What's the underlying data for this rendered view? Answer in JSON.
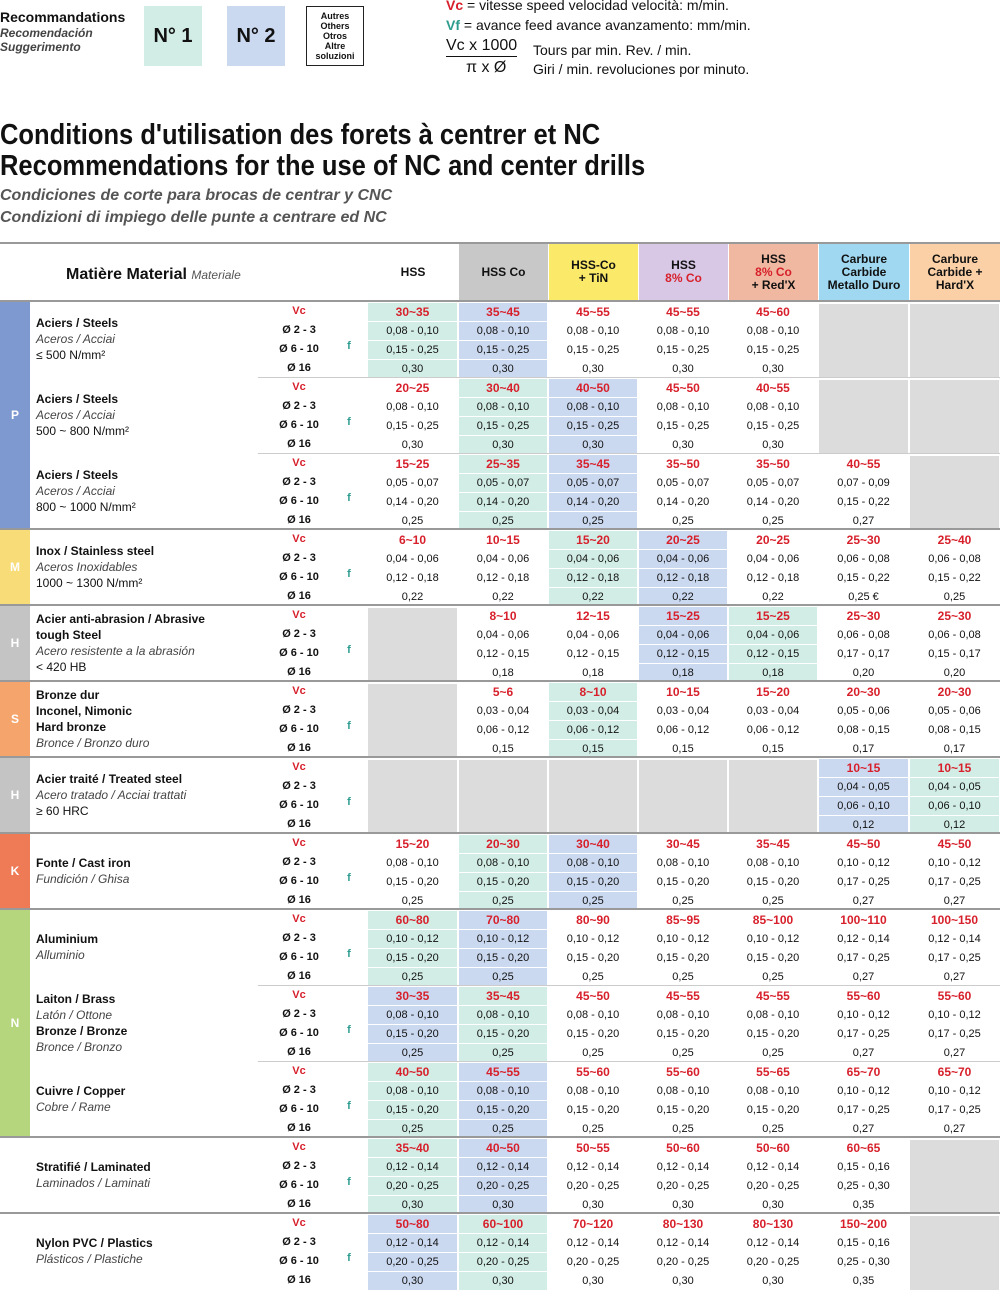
{
  "legend": {
    "recommend_title": "Recommandations",
    "recommend_es": "Recomendación",
    "recommend_it": "Suggerimento",
    "box1": "N° 1",
    "box2": "N° 2",
    "box3": [
      "Autres",
      "Others",
      "Otros",
      "Altre",
      "soluzioni"
    ],
    "vc_key": "Vc",
    "vc_text": "= vitesse     speed     velocidad     velocità: m/min.",
    "vf_key": "Vf",
    "vf_text": "= avance   feed   avance  avanzamento: mm/min.",
    "formula_num": "Vc x 1000",
    "formula_den": "π x Ø",
    "formula_line1": "Tours par min.     Rev. / min.",
    "formula_line2": "Giri / min.     revoluciones por minuto."
  },
  "titles": {
    "fr": "Conditions d'utilisation des forets à centrer et NC",
    "en": "Recommendations for the use of NC and center drills",
    "es": "Condiciones de corte para brocas de centrar y CNC",
    "it": "Condizioni di impiego delle punte a centrare ed NC"
  },
  "header": {
    "material_label": "Matière Material",
    "material_it": "Materiale",
    "columns": [
      {
        "lines": [
          "HSS"
        ],
        "bg": "#ffffff",
        "color": "#111111"
      },
      {
        "lines": [
          "HSS  Co"
        ],
        "bg": "#c8c8c8",
        "color": "#111111"
      },
      {
        "lines": [
          "HSS-Co",
          "+ TiN"
        ],
        "bg": "#fbe96a",
        "color": "#111111"
      },
      {
        "lines": [
          "HSS",
          "8% Co"
        ],
        "bg": "#d8c8e6",
        "color": "#111111",
        "red_part": "8%"
      },
      {
        "lines": [
          "HSS",
          "8% Co",
          "+ Red'X"
        ],
        "bg": "#f0b8a0",
        "color": "#111111",
        "red_part": "8%"
      },
      {
        "lines": [
          "Carbure",
          "Carbide",
          "Metallo Duro"
        ],
        "bg": "#9fd8f0",
        "color": "#111111"
      },
      {
        "lines": [
          "Carbure",
          "Carbide +",
          "Hard'X"
        ],
        "bg": "#fbd0a6",
        "color": "#111111"
      }
    ]
  },
  "row_labels": {
    "vc": "Vc",
    "d1": "Ø 2 - 3",
    "d2": "Ø 6 - 10",
    "d3": "Ø 16",
    "f": "f"
  },
  "groups": [
    {
      "cat": "P",
      "color": "#7e99cf",
      "blocks": [
        {
          "lines": [
            [
              "Aciers / Steels",
              "b"
            ],
            [
              "Aceros / Acciai",
              "i"
            ],
            [
              "≤ 500 N/mm²",
              "n"
            ]
          ],
          "vc": [
            "30~35",
            "35~45",
            "45~55",
            "45~55",
            "45~60",
            null,
            null
          ],
          "d1": [
            "0,08 - 0,10",
            "0,08 - 0,10",
            "0,08 - 0,10",
            "0,08 - 0,10",
            "0,08 - 0,10",
            null,
            null
          ],
          "d2": [
            "0,15 - 0,25",
            "0,15 - 0,25",
            "0,15 - 0,25",
            "0,15 - 0,25",
            "0,15 - 0,25",
            null,
            null
          ],
          "d3": [
            "0,30",
            "0,30",
            "0,30",
            "0,30",
            "0,30",
            null,
            null
          ],
          "hl": [
            1,
            2,
            0,
            0,
            0,
            0,
            0
          ]
        },
        {
          "lines": [
            [
              "Aciers / Steels",
              "b"
            ],
            [
              "Aceros / Acciai",
              "i"
            ],
            [
              "500 ~ 800 N/mm²",
              "n"
            ]
          ],
          "vc": [
            "20~25",
            "30~40",
            "40~50",
            "45~50",
            "40~55",
            null,
            null
          ],
          "d1": [
            "0,08 - 0,10",
            "0,08 - 0,10",
            "0,08 - 0,10",
            "0,08 - 0,10",
            "0,08 - 0,10",
            null,
            null
          ],
          "d2": [
            "0,15 - 0,25",
            "0,15 - 0,25",
            "0,15 - 0,25",
            "0,15 - 0,25",
            "0,15 - 0,25",
            null,
            null
          ],
          "d3": [
            "0,30",
            "0,30",
            "0,30",
            "0,30",
            "0,30",
            null,
            null
          ],
          "hl": [
            0,
            1,
            2,
            0,
            0,
            0,
            0
          ]
        },
        {
          "lines": [
            [
              "Aciers / Steels",
              "b"
            ],
            [
              "Aceros / Acciai",
              "i"
            ],
            [
              "800 ~ 1000 N/mm²",
              "n"
            ]
          ],
          "vc": [
            "15~25",
            "25~35",
            "35~45",
            "35~50",
            "35~50",
            "40~55",
            null
          ],
          "d1": [
            "0,05 - 0,07",
            "0,05 - 0,07",
            "0,05 - 0,07",
            "0,05 - 0,07",
            "0,05 - 0,07",
            "0,07 - 0,09",
            null
          ],
          "d2": [
            "0,14 - 0,20",
            "0,14 - 0,20",
            "0,14 - 0,20",
            "0,14 - 0,20",
            "0,14 - 0,20",
            "0,15 - 0,22",
            null
          ],
          "d3": [
            "0,25",
            "0,25",
            "0,25",
            "0,25",
            "0,25",
            "0,27",
            null
          ],
          "hl": [
            0,
            1,
            2,
            0,
            0,
            0,
            0
          ]
        }
      ]
    },
    {
      "cat": "M",
      "color": "#f8dc78",
      "blocks": [
        {
          "lines": [
            [
              "Inox / Stainless steel",
              "b"
            ],
            [
              "Aceros Inoxidables",
              "i"
            ],
            [
              "1000 ~ 1300 N/mm²",
              "n"
            ]
          ],
          "vc": [
            "6~10",
            "10~15",
            "15~20",
            "20~25",
            "20~25",
            "25~30",
            "25~40"
          ],
          "d1": [
            "0,04 - 0,06",
            "0,04 - 0,06",
            "0,04 - 0,06",
            "0,04 - 0,06",
            "0,04 - 0,06",
            "0,06 - 0,08",
            "0,06 - 0,08"
          ],
          "d2": [
            "0,12 - 0,18",
            "0,12 - 0,18",
            "0,12 - 0,18",
            "0,12 - 0,18",
            "0,12 - 0,18",
            "0,15 - 0,22",
            "0,15 - 0,22"
          ],
          "d3": [
            "0,22",
            "0,22",
            "0,22",
            "0,22",
            "0,22",
            "0,25 €",
            "0,25"
          ],
          "hl": [
            0,
            0,
            1,
            2,
            0,
            0,
            0
          ]
        }
      ]
    },
    {
      "cat": "H",
      "color": "#c4c4c4",
      "blocks": [
        {
          "lines": [
            [
              "Acier anti-abrasion /        Abrasive",
              "b"
            ],
            [
              "tough Steel",
              "b"
            ],
            [
              "Acero resistente a la abrasión",
              "i"
            ],
            [
              "< 420 HB",
              "n"
            ]
          ],
          "vc": [
            null,
            "8~10",
            "12~15",
            "15~25",
            "15~25",
            "25~30",
            "25~30"
          ],
          "d1": [
            null,
            "0,04 - 0,06",
            "0,04 - 0,06",
            "0,04 - 0,06",
            "0,04 - 0,06",
            "0,06 - 0,08",
            "0,06 - 0,08"
          ],
          "d2": [
            null,
            "0,12 - 0,15",
            "0,12 - 0,15",
            "0,12 - 0,15",
            "0,12 - 0,15",
            "0,17 - 0,17",
            "0,15 - 0,17"
          ],
          "d3": [
            null,
            "0,18",
            "0,18",
            "0,18",
            "0,18",
            "0,20",
            "0,20"
          ],
          "hl": [
            0,
            0,
            0,
            2,
            1,
            0,
            0
          ]
        }
      ]
    },
    {
      "cat": "S",
      "color": "#f5a46c",
      "blocks": [
        {
          "lines": [
            [
              "Bronze dur",
              "b"
            ],
            [
              "Inconel, Nimonic",
              "b"
            ],
            [
              "Hard bronze",
              "b"
            ],
            [
              "Bronce / Bronzo duro",
              "i"
            ]
          ],
          "vc": [
            null,
            "5~6",
            "8~10",
            "10~15",
            "15~20",
            "20~30",
            "20~30"
          ],
          "d1": [
            null,
            "0,03 - 0,04",
            "0,03 - 0,04",
            "0,03 - 0,04",
            "0,03 - 0,04",
            "0,05 - 0,06",
            "0,05 - 0,06"
          ],
          "d2": [
            null,
            "0,06 - 0,12",
            "0,06 - 0,12",
            "0,06 - 0,12",
            "0,06 - 0,12",
            "0,08 - 0,15",
            "0,08 - 0,15"
          ],
          "d3": [
            null,
            "0,15",
            "0,15",
            "0,15",
            "0,15",
            "0,17",
            "0,17"
          ],
          "hl": [
            0,
            0,
            1,
            0,
            0,
            0,
            0
          ]
        }
      ]
    },
    {
      "cat": "H",
      "color": "#c4c4c4",
      "blocks": [
        {
          "lines": [
            [
              "Acier traité / Treated steel",
              "b"
            ],
            [
              "Acero tratado / Acciai trattati",
              "i"
            ],
            [
              "≥ 60 HRC",
              "n"
            ]
          ],
          "vc": [
            null,
            null,
            null,
            null,
            null,
            "10~15",
            "10~15"
          ],
          "d1": [
            null,
            null,
            null,
            null,
            null,
            "0,04 - 0,05",
            "0,04 - 0,05"
          ],
          "d2": [
            null,
            null,
            null,
            null,
            null,
            "0,06 - 0,10",
            "0,06 - 0,10"
          ],
          "d3": [
            null,
            null,
            null,
            null,
            null,
            "0,12",
            "0,12"
          ],
          "hl": [
            0,
            0,
            0,
            0,
            0,
            2,
            1
          ]
        }
      ]
    },
    {
      "cat": "K",
      "color": "#ef7a56",
      "blocks": [
        {
          "lines": [
            [
              "Fonte / Cast iron",
              "b"
            ],
            [
              "Fundición / Ghisa",
              "i"
            ]
          ],
          "vc": [
            "15~20",
            "20~30",
            "30~40",
            "30~45",
            "35~45",
            "45~50",
            "45~50"
          ],
          "d1": [
            "0,08 - 0,10",
            "0,08 - 0,10",
            "0,08 - 0,10",
            "0,08 - 0,10",
            "0,08 - 0,10",
            "0,10 - 0,12",
            "0,10 - 0,12"
          ],
          "d2": [
            "0,15 - 0,20",
            "0,15 - 0,20",
            "0,15 - 0,20",
            "0,15 - 0,20",
            "0,15 - 0,20",
            "0,17 - 0,25",
            "0,17 - 0,25"
          ],
          "d3": [
            "0,25",
            "0,25",
            "0,25",
            "0,25",
            "0,25",
            "0,27",
            "0,27"
          ],
          "hl": [
            0,
            1,
            2,
            0,
            0,
            0,
            0
          ]
        }
      ]
    },
    {
      "cat": "N",
      "color": "#b5d67c",
      "blocks": [
        {
          "lines": [
            [
              "Aluminium",
              "b"
            ],
            [
              "Alluminio",
              "i"
            ]
          ],
          "vc": [
            "60~80",
            "70~80",
            "80~90",
            "85~95",
            "85~100",
            "100~110",
            "100~150"
          ],
          "d1": [
            "0,10 - 0,12",
            "0,10 - 0,12",
            "0,10 - 0,12",
            "0,10 - 0,12",
            "0,10 - 0,12",
            "0,12 - 0,14",
            "0,12 - 0,14"
          ],
          "d2": [
            "0,15 - 0,20",
            "0,15 - 0,20",
            "0,15 - 0,20",
            "0,15 - 0,20",
            "0,15 - 0,20",
            "0,17 - 0,25",
            "0,17 - 0,25"
          ],
          "d3": [
            "0,25",
            "0,25",
            "0,25",
            "0,25",
            "0,25",
            "0,27",
            "0,27"
          ],
          "hl": [
            1,
            2,
            0,
            0,
            0,
            0,
            0
          ]
        },
        {
          "lines": [
            [
              "Laiton / Brass",
              "b"
            ],
            [
              "Latón / Ottone",
              "i"
            ],
            [
              "Bronze / Bronze",
              "b"
            ],
            [
              "Bronce / Bronzo",
              "i"
            ]
          ],
          "vc": [
            "30~35",
            "35~45",
            "45~50",
            "45~55",
            "45~55",
            "55~60",
            "55~60"
          ],
          "d1": [
            "0,08 - 0,10",
            "0,08 - 0,10",
            "0,08 - 0,10",
            "0,08 - 0,10",
            "0,08 - 0,10",
            "0,10 - 0,12",
            "0,10 - 0,12"
          ],
          "d2": [
            "0,15 - 0,20",
            "0,15 - 0,20",
            "0,15 - 0,20",
            "0,15 - 0,20",
            "0,15 - 0,20",
            "0,17 - 0,25",
            "0,17 - 0,25"
          ],
          "d3": [
            "0,25",
            "0,25",
            "0,25",
            "0,25",
            "0,25",
            "0,27",
            "0,27"
          ],
          "hl": [
            2,
            1,
            0,
            0,
            0,
            0,
            0
          ]
        },
        {
          "lines": [
            [
              "Cuivre / Copper",
              "b"
            ],
            [
              "Cobre / Rame",
              "i"
            ]
          ],
          "vc": [
            "40~50",
            "45~55",
            "55~60",
            "55~60",
            "55~65",
            "65~70",
            "65~70"
          ],
          "d1": [
            "0,08 - 0,10",
            "0,08 - 0,10",
            "0,08 - 0,10",
            "0,08 - 0,10",
            "0,08 - 0,10",
            "0,10 - 0,12",
            "0,10 - 0,12"
          ],
          "d2": [
            "0,15 - 0,20",
            "0,15 - 0,20",
            "0,15 - 0,20",
            "0,15 - 0,20",
            "0,15 - 0,20",
            "0,17 - 0,25",
            "0,17 - 0,25"
          ],
          "d3": [
            "0,25",
            "0,25",
            "0,25",
            "0,25",
            "0,25",
            "0,27",
            "0,27"
          ],
          "hl": [
            1,
            2,
            0,
            0,
            0,
            0,
            0
          ]
        }
      ]
    },
    {
      "cat": "",
      "color": "#ffffff",
      "blocks": [
        {
          "lines": [
            [
              "Stratifié / Laminated",
              "b"
            ],
            [
              "Laminados / Laminati",
              "i"
            ]
          ],
          "vc": [
            "35~40",
            "40~50",
            "50~55",
            "50~60",
            "50~60",
            "60~65",
            null
          ],
          "d1": [
            "0,12 - 0,14",
            "0,12 - 0,14",
            "0,12 - 0,14",
            "0,12 - 0,14",
            "0,12 - 0,14",
            "0,15 - 0,16",
            null
          ],
          "d2": [
            "0,20 - 0,25",
            "0,20 - 0,25",
            "0,20 - 0,25",
            "0,20 - 0,25",
            "0,20 - 0,25",
            "0,25 - 0,30",
            null
          ],
          "d3": [
            "0,30",
            "0,30",
            "0,30",
            "0,30",
            "0,30",
            "0,35",
            null
          ],
          "hl": [
            1,
            2,
            0,
            0,
            0,
            0,
            0
          ]
        }
      ]
    },
    {
      "cat": "",
      "color": "#ffffff",
      "blocks": [
        {
          "lines": [
            [
              "Nylon PVC / Plastics",
              "b"
            ],
            [
              "Plásticos / Plastiche",
              "i"
            ]
          ],
          "vc": [
            "50~80",
            "60~100",
            "70~120",
            "80~130",
            "80~130",
            "150~200",
            null
          ],
          "d1": [
            "0,12 - 0,14",
            "0,12 - 0,14",
            "0,12 - 0,14",
            "0,12 - 0,14",
            "0,12 - 0,14",
            "0,15 - 0,16",
            null
          ],
          "d2": [
            "0,20 - 0,25",
            "0,20 - 0,25",
            "0,20 - 0,25",
            "0,20 - 0,25",
            "0,20 - 0,25",
            "0,25 - 0,30",
            null
          ],
          "d3": [
            "0,30",
            "0,30",
            "0,30",
            "0,30",
            "0,30",
            "0,35",
            null
          ],
          "hl": [
            2,
            1,
            0,
            0,
            0,
            0,
            0
          ]
        }
      ]
    }
  ]
}
